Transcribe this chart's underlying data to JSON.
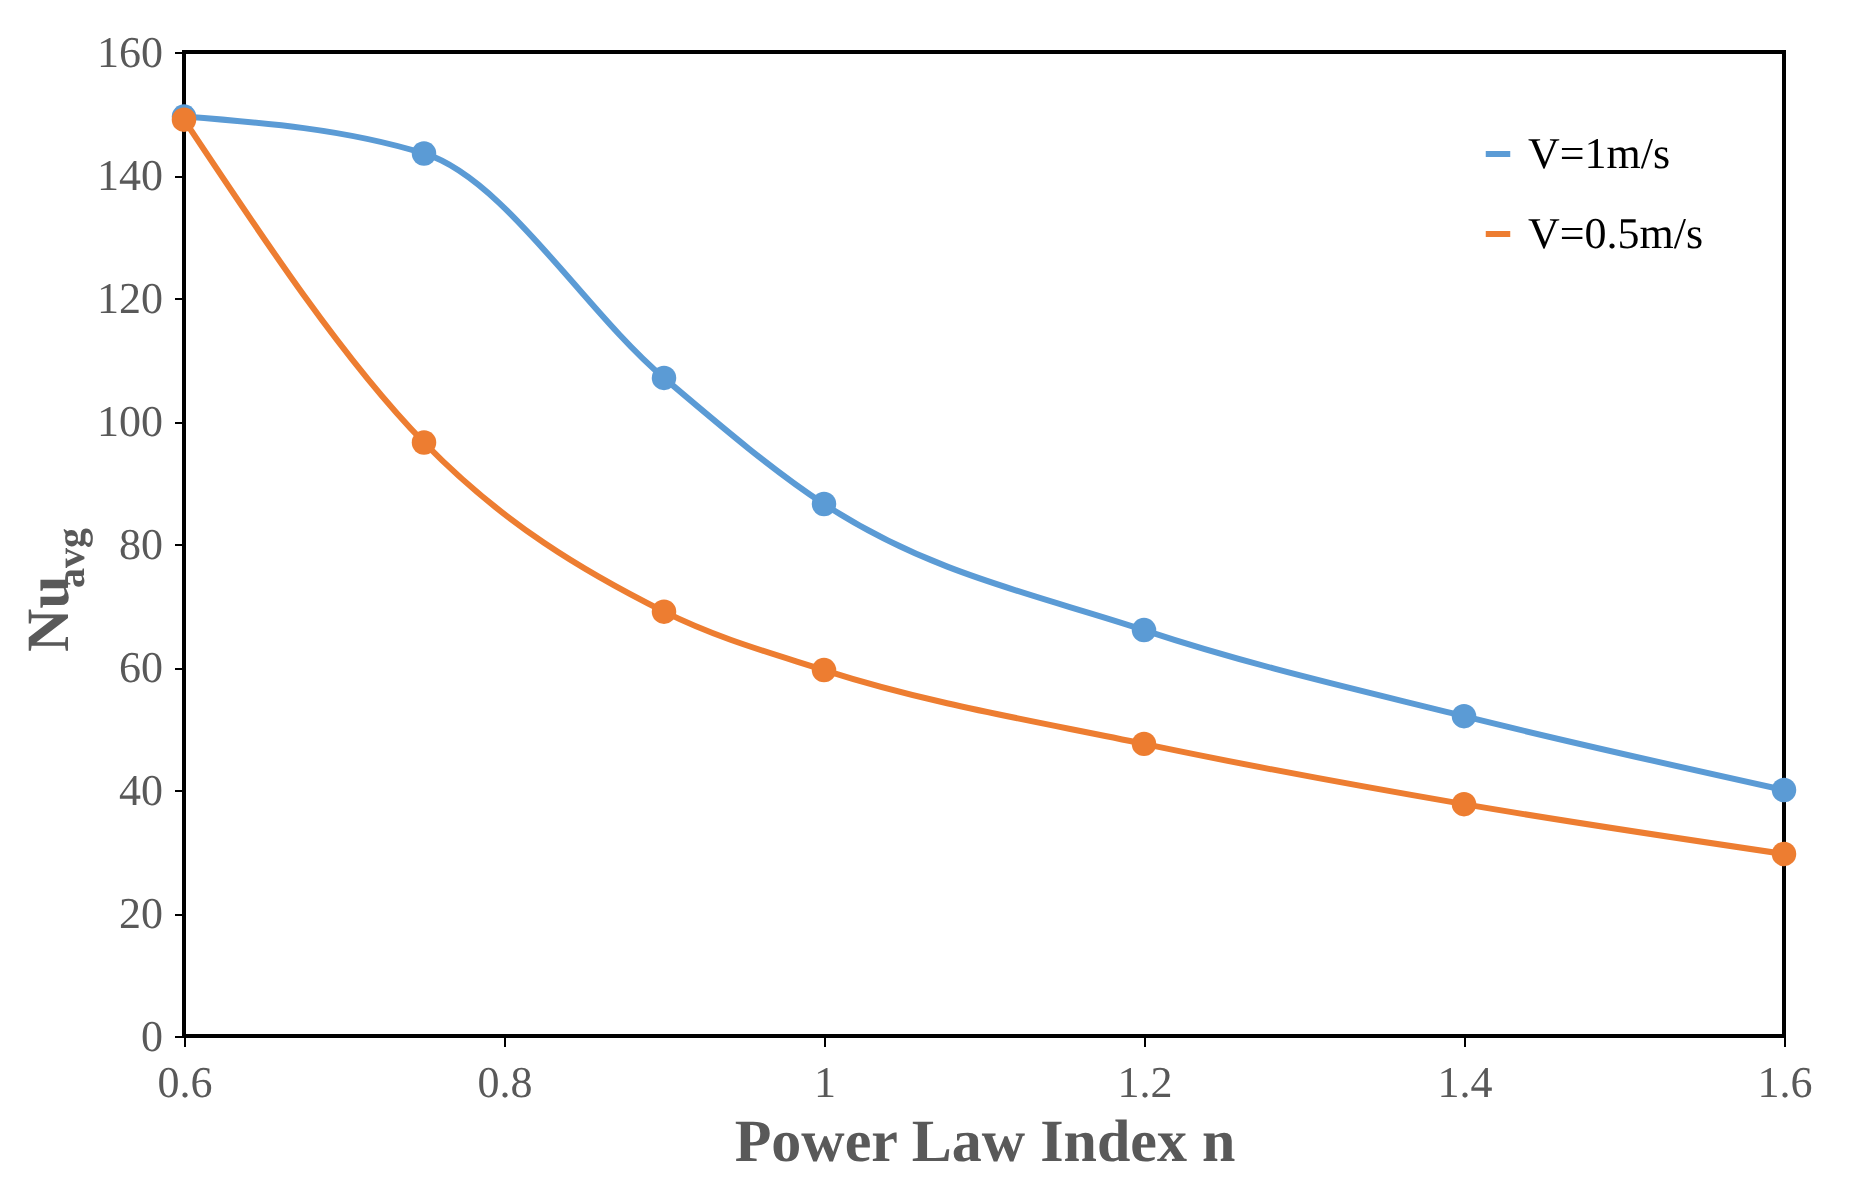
{
  "chart_data": {
    "type": "line",
    "xlabel": "Power Law Index n",
    "ylabel": "Nu$_{avg}$",
    "x": [
      0.6,
      0.75,
      0.9,
      1.0,
      1.2,
      1.4,
      1.6
    ],
    "series": [
      {
        "name": "V=1m/s",
        "color": "#5b9bd5",
        "values": [
          149.5,
          143.5,
          107,
          86.5,
          66,
          52,
          40
        ]
      },
      {
        "name": "V=0.5m/s",
        "color": "#ed7d31",
        "values": [
          149,
          96.5,
          69,
          59.5,
          47.5,
          37.7,
          29.6
        ]
      }
    ],
    "xlim": [
      0.6,
      1.6
    ],
    "xticks": [
      0.6,
      0.8,
      1,
      1.2,
      1.4,
      1.6
    ],
    "ylim": [
      0,
      160
    ],
    "yticks": [
      0,
      20,
      40,
      60,
      80,
      100,
      120,
      140,
      160
    ],
    "grid": false,
    "legend": "top right",
    "marker": "circle",
    "line_style": "solid"
  }
}
